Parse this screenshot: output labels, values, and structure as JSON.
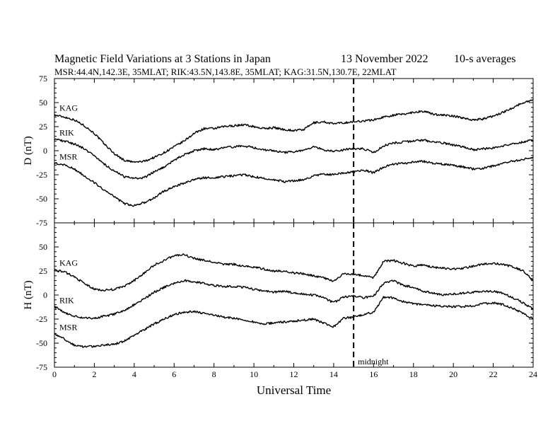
{
  "header": {
    "title": "Magnetic Field Variations at 3 Stations in Japan",
    "date": "13 November 2022",
    "averaging": "10-s averages",
    "stations_line": "MSR:44.4N,142.3E, 35MLAT;  RIK:43.5N,143.8E, 35MLAT;  KAG:31.5N,130.7E, 22MLAT"
  },
  "chart_data": [
    {
      "type": "line",
      "panel": "top",
      "ylabel": "D (nT)",
      "xlim": [
        0,
        24
      ],
      "ylim": [
        -75,
        75
      ],
      "yticks": [
        "75",
        "50",
        "25",
        "0",
        "-25",
        "-50",
        "-75"
      ],
      "series": [
        {
          "name": "KAG",
          "x": [
            0,
            0.5,
            1,
            1.5,
            2,
            2.5,
            3,
            3.5,
            4,
            4.5,
            5,
            5.5,
            6,
            6.5,
            7,
            7.5,
            8,
            8.5,
            9,
            9.5,
            10,
            10.5,
            11,
            11.5,
            12,
            12.5,
            13,
            13.5,
            14,
            14.5,
            15,
            15.5,
            16,
            16.5,
            17,
            17.5,
            18,
            18.5,
            19,
            19.5,
            20,
            20.5,
            21,
            21.5,
            22,
            22.5,
            23,
            23.5,
            24
          ],
          "y": [
            37,
            35,
            32,
            26,
            18,
            7,
            -3,
            -10,
            -12,
            -11,
            -7,
            -2,
            4,
            10,
            18,
            23,
            23,
            25,
            26,
            27,
            25,
            23,
            24,
            22,
            21,
            22,
            29,
            30,
            28,
            29,
            30,
            31,
            32,
            35,
            37,
            38,
            40,
            41,
            38,
            37,
            36,
            34,
            32,
            33,
            36,
            40,
            45,
            50,
            53
          ]
        },
        {
          "name": "RIK",
          "x": [
            0,
            0.5,
            1,
            1.5,
            2,
            2.5,
            3,
            3.5,
            4,
            4.5,
            5,
            5.5,
            6,
            6.5,
            7,
            7.5,
            8,
            8.5,
            9,
            9.5,
            10,
            10.5,
            11,
            11.5,
            12,
            12.5,
            13,
            13.5,
            14,
            14.5,
            15,
            15.5,
            16,
            16.5,
            17,
            17.5,
            18,
            18.5,
            19,
            19.5,
            20,
            20.5,
            21,
            21.5,
            22,
            22.5,
            23,
            23.5,
            24
          ],
          "y": [
            12,
            10,
            7,
            2,
            -5,
            -14,
            -21,
            -27,
            -29,
            -28,
            -22,
            -17,
            -10,
            -4,
            0,
            2,
            1,
            3,
            4,
            5,
            3,
            1,
            0,
            -2,
            -1,
            0,
            4,
            1,
            -1,
            1,
            2,
            2,
            -2,
            5,
            8,
            9,
            10,
            11,
            9,
            8,
            6,
            4,
            1,
            2,
            3,
            5,
            7,
            9,
            11
          ]
        },
        {
          "name": "MSR",
          "x": [
            0,
            0.5,
            1,
            1.5,
            2,
            2.5,
            3,
            3.5,
            4,
            4.5,
            5,
            5.5,
            6,
            6.5,
            7,
            7.5,
            8,
            8.5,
            9,
            9.5,
            10,
            10.5,
            11,
            11.5,
            12,
            12.5,
            13,
            13.5,
            14,
            14.5,
            15,
            15.5,
            16,
            16.5,
            17,
            17.5,
            18,
            18.5,
            19,
            19.5,
            20,
            20.5,
            21,
            21.5,
            22,
            22.5,
            23,
            23.5,
            24
          ],
          "y": [
            -13,
            -15,
            -19,
            -26,
            -33,
            -41,
            -48,
            -55,
            -57,
            -54,
            -49,
            -42,
            -37,
            -34,
            -30,
            -28,
            -28,
            -27,
            -26,
            -25,
            -27,
            -29,
            -30,
            -32,
            -31,
            -30,
            -26,
            -24,
            -25,
            -23,
            -22,
            -20,
            -23,
            -17,
            -14,
            -13,
            -12,
            -11,
            -13,
            -14,
            -15,
            -17,
            -19,
            -18,
            -16,
            -13,
            -11,
            -9,
            -7
          ]
        }
      ]
    },
    {
      "type": "line",
      "panel": "bottom",
      "ylabel": "H (nT)",
      "xlabel": "Universal Time",
      "xlim": [
        0,
        24
      ],
      "ylim": [
        -75,
        75
      ],
      "xticks": [
        "0",
        "2",
        "4",
        "6",
        "8",
        "10",
        "12",
        "14",
        "16",
        "18",
        "20",
        "22",
        "24"
      ],
      "yticks": [
        "75",
        "50",
        "25",
        "0",
        "-25",
        "-50",
        "-75"
      ],
      "series": [
        {
          "name": "KAG",
          "x": [
            0,
            0.5,
            1,
            1.5,
            2,
            2.5,
            3,
            3.5,
            4,
            4.5,
            5,
            5.5,
            6,
            6.5,
            7,
            7.5,
            8,
            8.5,
            9,
            9.5,
            10,
            10.5,
            11,
            11.5,
            12,
            12.5,
            13,
            13.5,
            14,
            14.5,
            15,
            15.5,
            16,
            16.5,
            17,
            17.5,
            18,
            18.5,
            19,
            19.5,
            20,
            20.5,
            21,
            21.5,
            22,
            22.5,
            23,
            23.5,
            24
          ],
          "y": [
            26,
            24,
            19,
            12,
            6,
            5,
            6,
            9,
            15,
            23,
            31,
            36,
            41,
            42,
            38,
            36,
            34,
            32,
            32,
            30,
            29,
            27,
            25,
            25,
            23,
            22,
            20,
            18,
            14,
            22,
            22,
            20,
            18,
            35,
            36,
            33,
            30,
            31,
            29,
            28,
            27,
            28,
            30,
            32,
            33,
            32,
            29,
            25,
            15
          ]
        },
        {
          "name": "RIK",
          "x": [
            0,
            0.5,
            1,
            1.5,
            2,
            2.5,
            3,
            3.5,
            4,
            4.5,
            5,
            5.5,
            6,
            6.5,
            7,
            7.5,
            8,
            8.5,
            9,
            9.5,
            10,
            10.5,
            11,
            11.5,
            12,
            12.5,
            13,
            13.5,
            14,
            14.5,
            15,
            15.5,
            16,
            16.5,
            17,
            17.5,
            18,
            18.5,
            19,
            19.5,
            20,
            20.5,
            21,
            21.5,
            22,
            22.5,
            23,
            23.5,
            24
          ],
          "y": [
            -12,
            -18,
            -22,
            -24,
            -24,
            -22,
            -20,
            -16,
            -10,
            -4,
            3,
            8,
            12,
            15,
            14,
            12,
            10,
            9,
            9,
            8,
            6,
            4,
            3,
            4,
            2,
            1,
            0,
            -3,
            -8,
            -2,
            -1,
            -3,
            -1,
            12,
            15,
            10,
            8,
            4,
            2,
            0,
            1,
            2,
            3,
            4,
            4,
            2,
            -3,
            -8,
            -15
          ]
        },
        {
          "name": "MSR",
          "x": [
            0,
            0.5,
            1,
            1.5,
            2,
            2.5,
            3,
            3.5,
            4,
            4.5,
            5,
            5.5,
            6,
            6.5,
            7,
            7.5,
            8,
            8.5,
            9,
            9.5,
            10,
            10.5,
            11,
            11.5,
            12,
            12.5,
            13,
            13.5,
            14,
            14.5,
            15,
            15.5,
            16,
            16.5,
            17,
            17.5,
            18,
            18.5,
            19,
            19.5,
            20,
            20.5,
            21,
            21.5,
            22,
            22.5,
            23,
            23.5,
            24
          ],
          "y": [
            -40,
            -46,
            -52,
            -54,
            -53,
            -52,
            -51,
            -48,
            -42,
            -36,
            -30,
            -25,
            -20,
            -18,
            -17,
            -19,
            -21,
            -23,
            -24,
            -26,
            -28,
            -30,
            -29,
            -28,
            -27,
            -26,
            -25,
            -29,
            -33,
            -24,
            -23,
            -20,
            -18,
            -2,
            -3,
            -7,
            -9,
            -10,
            -11,
            -12,
            -12,
            -12,
            -11,
            -9,
            -8,
            -10,
            -14,
            -19,
            -25
          ]
        }
      ]
    }
  ],
  "marker": {
    "x": 15,
    "label": "midnight"
  }
}
